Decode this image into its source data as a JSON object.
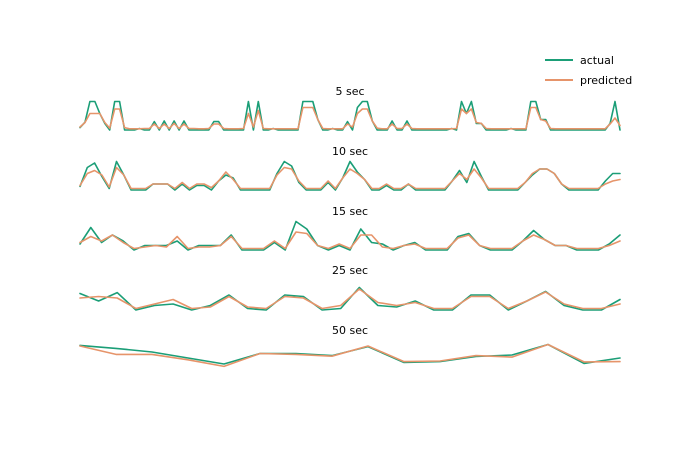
{
  "colors": {
    "actual": "#1b9e77",
    "predicted": "#e6946a"
  },
  "chart_data": {
    "type": "line",
    "legend_position": "top-right",
    "grid": false,
    "axes_visible": false,
    "legend": [
      "actual",
      "predicted"
    ],
    "panels": [
      {
        "title": "5 sec",
        "ylim": [
          0,
          1
        ],
        "series": [
          {
            "name": "actual",
            "values": [
              0.08,
              0.26,
              0.95,
              0.95,
              0.55,
              0.22,
              0,
              0.95,
              0.95,
              0,
              0,
              0,
              0.05,
              0,
              0,
              0.28,
              0,
              0.3,
              0,
              0.3,
              0,
              0.3,
              0,
              0,
              0,
              0,
              0,
              0.28,
              0.28,
              0,
              0,
              0,
              0,
              0,
              0.95,
              0,
              0.95,
              0,
              0,
              0.05,
              0,
              0,
              0,
              0,
              0,
              0.95,
              0.95,
              0.95,
              0.35,
              0,
              0,
              0.05,
              0,
              0,
              0.28,
              0,
              0.75,
              0.95,
              0.95,
              0.3,
              0,
              0,
              0,
              0.3,
              0,
              0,
              0.3,
              0,
              0,
              0,
              0,
              0,
              0,
              0,
              0,
              0.05,
              0,
              0.95,
              0.55,
              0.95,
              0.22,
              0.22,
              0,
              0,
              0,
              0,
              0,
              0.05,
              0,
              0,
              0,
              0.95,
              0.95,
              0.35,
              0.35,
              0,
              0,
              0,
              0,
              0,
              0,
              0,
              0,
              0,
              0,
              0,
              0,
              0.22,
              0.95,
              0
            ]
          },
          {
            "name": "predicted",
            "values": [
              0.1,
              0.25,
              0.55,
              0.55,
              0.55,
              0.25,
              0.06,
              0.7,
              0.7,
              0.08,
              0.04,
              0.04,
              0.04,
              0.05,
              0.05,
              0.2,
              0.05,
              0.2,
              0.05,
              0.22,
              0.05,
              0.2,
              0.05,
              0.05,
              0.04,
              0.04,
              0.05,
              0.2,
              0.2,
              0.05,
              0.04,
              0.04,
              0.04,
              0.05,
              0.55,
              0.1,
              0.65,
              0.05,
              0.04,
              0.04,
              0.04,
              0.04,
              0.04,
              0.04,
              0.04,
              0.75,
              0.75,
              0.75,
              0.35,
              0.05,
              0.04,
              0.04,
              0.04,
              0.04,
              0.2,
              0.1,
              0.55,
              0.7,
              0.7,
              0.3,
              0.06,
              0.04,
              0.04,
              0.2,
              0.05,
              0.05,
              0.2,
              0.05,
              0.04,
              0.04,
              0.04,
              0.04,
              0.04,
              0.04,
              0.04,
              0.04,
              0.05,
              0.7,
              0.55,
              0.7,
              0.25,
              0.22,
              0.05,
              0.04,
              0.04,
              0.04,
              0.04,
              0.04,
              0.04,
              0.04,
              0.04,
              0.75,
              0.75,
              0.35,
              0.3,
              0.05,
              0.04,
              0.04,
              0.04,
              0.04,
              0.04,
              0.04,
              0.04,
              0.04,
              0.04,
              0.04,
              0.04,
              0.2,
              0.4,
              0.15
            ]
          }
        ]
      },
      {
        "title": "10 sec",
        "ylim": [
          0,
          1
        ],
        "series": [
          {
            "name": "actual",
            "values": [
              0.12,
              0.75,
              0.9,
              0.45,
              0.05,
              0.95,
              0.5,
              0,
              0,
              0,
              0.2,
              0.2,
              0.2,
              0,
              0.2,
              0,
              0.15,
              0.15,
              0,
              0.3,
              0.5,
              0.4,
              0,
              0,
              0,
              0,
              0,
              0.55,
              0.95,
              0.8,
              0.25,
              0,
              0,
              0,
              0.25,
              0,
              0.4,
              0.95,
              0.6,
              0.35,
              0,
              0,
              0.15,
              0,
              0,
              0.2,
              0,
              0,
              0,
              0,
              0,
              0.3,
              0.65,
              0.25,
              0.95,
              0.45,
              0,
              0,
              0,
              0,
              0,
              0.25,
              0.5,
              0.7,
              0.7,
              0.55,
              0.2,
              0,
              0,
              0,
              0,
              0,
              0.3,
              0.55,
              0.55
            ]
          },
          {
            "name": "predicted",
            "values": [
              0.15,
              0.55,
              0.65,
              0.5,
              0.1,
              0.75,
              0.5,
              0.05,
              0.05,
              0.05,
              0.2,
              0.2,
              0.2,
              0.05,
              0.25,
              0.05,
              0.2,
              0.2,
              0.08,
              0.3,
              0.6,
              0.35,
              0.05,
              0.05,
              0.05,
              0.05,
              0.05,
              0.5,
              0.75,
              0.7,
              0.3,
              0.05,
              0.05,
              0.05,
              0.3,
              0.05,
              0.4,
              0.7,
              0.55,
              0.35,
              0.05,
              0.05,
              0.2,
              0.05,
              0.05,
              0.2,
              0.05,
              0.05,
              0.05,
              0.05,
              0.05,
              0.3,
              0.55,
              0.35,
              0.7,
              0.4,
              0.05,
              0.05,
              0.05,
              0.05,
              0.05,
              0.25,
              0.55,
              0.7,
              0.7,
              0.55,
              0.2,
              0.05,
              0.05,
              0.05,
              0.05,
              0.05,
              0.2,
              0.3,
              0.35
            ]
          }
        ]
      },
      {
        "title": "15 sec",
        "ylim": [
          0,
          1
        ],
        "series": [
          {
            "name": "actual",
            "values": [
              0.2,
              0.75,
              0.25,
              0.5,
              0.3,
              0,
              0.15,
              0.15,
              0.15,
              0.3,
              0,
              0.15,
              0.15,
              0.15,
              0.5,
              0,
              0,
              0,
              0.25,
              0,
              0.95,
              0.7,
              0.15,
              0,
              0.15,
              0,
              0.7,
              0.25,
              0.2,
              0,
              0.15,
              0.25,
              0,
              0,
              0,
              0.45,
              0.55,
              0.15,
              0,
              0,
              0,
              0.3,
              0.65,
              0.35,
              0.15,
              0.15,
              0,
              0,
              0,
              0.2,
              0.5
            ]
          },
          {
            "name": "predicted",
            "values": [
              0.25,
              0.45,
              0.3,
              0.5,
              0.25,
              0.05,
              0.1,
              0.15,
              0.1,
              0.45,
              0.05,
              0.1,
              0.1,
              0.15,
              0.45,
              0.05,
              0.05,
              0.05,
              0.3,
              0.05,
              0.6,
              0.55,
              0.15,
              0.05,
              0.2,
              0.05,
              0.5,
              0.5,
              0.1,
              0.05,
              0.15,
              0.2,
              0.05,
              0.05,
              0.05,
              0.4,
              0.5,
              0.15,
              0.05,
              0.05,
              0.05,
              0.3,
              0.5,
              0.35,
              0.15,
              0.15,
              0.05,
              0.05,
              0.05,
              0.15,
              0.3
            ]
          }
        ]
      },
      {
        "title": "25 sec",
        "ylim": [
          0,
          1
        ],
        "series": [
          {
            "name": "actual",
            "values": [
              0.55,
              0.3,
              0.58,
              0,
              0.15,
              0.2,
              0,
              0.15,
              0.5,
              0.05,
              0,
              0.5,
              0.45,
              0,
              0.05,
              0.75,
              0.15,
              0.1,
              0.3,
              0,
              0,
              0.5,
              0.5,
              0,
              0.3,
              0.62,
              0.15,
              0,
              0,
              0.35
            ]
          },
          {
            "name": "predicted",
            "values": [
              0.4,
              0.45,
              0.4,
              0.05,
              0.2,
              0.35,
              0.05,
              0.1,
              0.45,
              0.1,
              0.05,
              0.45,
              0.4,
              0.05,
              0.15,
              0.7,
              0.25,
              0.15,
              0.25,
              0.05,
              0.05,
              0.45,
              0.45,
              0.05,
              0.3,
              0.6,
              0.2,
              0.05,
              0.05,
              0.2
            ]
          }
        ]
      },
      {
        "title": "50 sec",
        "ylim": [
          0,
          1
        ],
        "series": [
          {
            "name": "actual",
            "values": [
              0.82,
              0.72,
              0.6,
              0.4,
              0.2,
              0.55,
              0.55,
              0.48,
              0.78,
              0.25,
              0.28,
              0.45,
              0.5,
              0.85,
              0.22,
              0.4
            ]
          },
          {
            "name": "predicted",
            "values": [
              0.8,
              0.52,
              0.52,
              0.34,
              0.12,
              0.55,
              0.52,
              0.46,
              0.8,
              0.28,
              0.3,
              0.48,
              0.43,
              0.85,
              0.27,
              0.28
            ]
          }
        ]
      }
    ]
  }
}
